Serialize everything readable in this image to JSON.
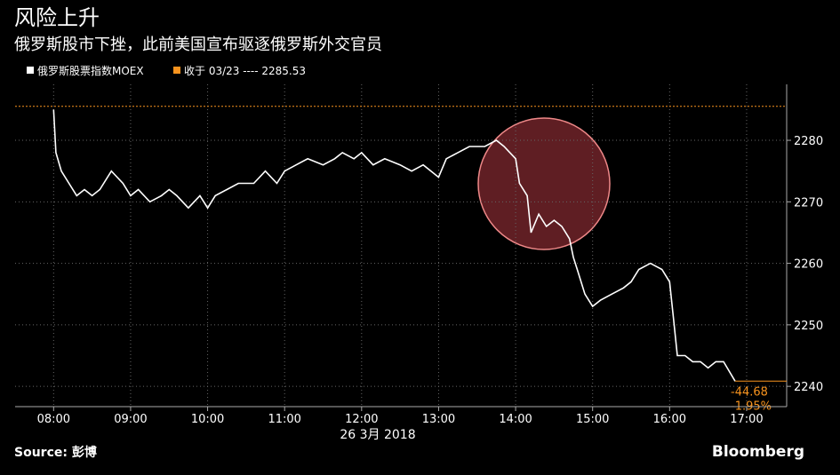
{
  "chart_data": {
    "type": "line",
    "title": "风险上升",
    "subtitle": "俄罗斯股市下挫，此前美国宣布驱逐俄罗斯外交官员",
    "x": [
      8.0,
      8.03,
      8.1,
      8.2,
      8.3,
      8.4,
      8.5,
      8.6,
      8.75,
      8.9,
      9.0,
      9.1,
      9.25,
      9.4,
      9.5,
      9.6,
      9.75,
      9.9,
      10.0,
      10.1,
      10.25,
      10.4,
      10.6,
      10.75,
      10.9,
      11.0,
      11.15,
      11.3,
      11.5,
      11.65,
      11.75,
      11.9,
      12.0,
      12.15,
      12.3,
      12.5,
      12.65,
      12.8,
      13.0,
      13.1,
      13.25,
      13.4,
      13.6,
      13.75,
      13.85,
      14.0,
      14.05,
      14.15,
      14.2,
      14.3,
      14.4,
      14.5,
      14.6,
      14.7,
      14.75,
      14.8,
      14.9,
      15.0,
      15.1,
      15.25,
      15.4,
      15.5,
      15.6,
      15.75,
      15.9,
      16.0,
      16.05,
      16.1,
      16.2,
      16.3,
      16.4,
      16.5,
      16.6,
      16.7,
      16.85
    ],
    "series": [
      {
        "name": "俄罗斯股票指数MOEX",
        "color": "#ffffff",
        "values": [
          2285,
          2278,
          2275,
          2273,
          2271,
          2272,
          2271,
          2272,
          2275,
          2273,
          2271,
          2272,
          2270,
          2271,
          2272,
          2271,
          2269,
          2271,
          2269,
          2271,
          2272,
          2273,
          2273,
          2275,
          2273,
          2275,
          2276,
          2277,
          2276,
          2277,
          2278,
          2277,
          2278,
          2276,
          2277,
          2276,
          2275,
          2276,
          2274,
          2277,
          2278,
          2279,
          2279,
          2280,
          2279,
          2277,
          2273,
          2271,
          2265,
          2268,
          2266,
          2267,
          2266,
          2264,
          2261,
          2259,
          2255,
          2253,
          2254,
          2255,
          2256,
          2257,
          2259,
          2260,
          2259,
          2257,
          2251,
          2245,
          2245,
          2244,
          2244,
          2243,
          2244,
          2244,
          2240.85
        ]
      }
    ],
    "close_label": "收于 03/23 ---- 2285.53",
    "close_value": 2285.53,
    "close_color": "#f7931e",
    "change_labels": [
      "-44.68",
      "-1.95%"
    ],
    "xlabel": "26 3月 2018",
    "xlim": [
      7.5,
      17.52
    ],
    "xticks": [
      {
        "value": 8,
        "label": "08:00"
      },
      {
        "value": 9,
        "label": "09:00"
      },
      {
        "value": 10,
        "label": "10:00"
      },
      {
        "value": 11,
        "label": "11:00"
      },
      {
        "value": 12,
        "label": "12:00"
      },
      {
        "value": 13,
        "label": "13:00"
      },
      {
        "value": 14,
        "label": "14:00"
      },
      {
        "value": 15,
        "label": "15:00"
      },
      {
        "value": 16,
        "label": "16:00"
      },
      {
        "value": 17,
        "label": "17:00"
      }
    ],
    "ylim": [
      2236.7,
      2289.1
    ],
    "yticks": [
      2240,
      2250,
      2260,
      2270,
      2280
    ],
    "grid": true,
    "source": "Source: 彭博",
    "brand": "Bloomberg"
  }
}
